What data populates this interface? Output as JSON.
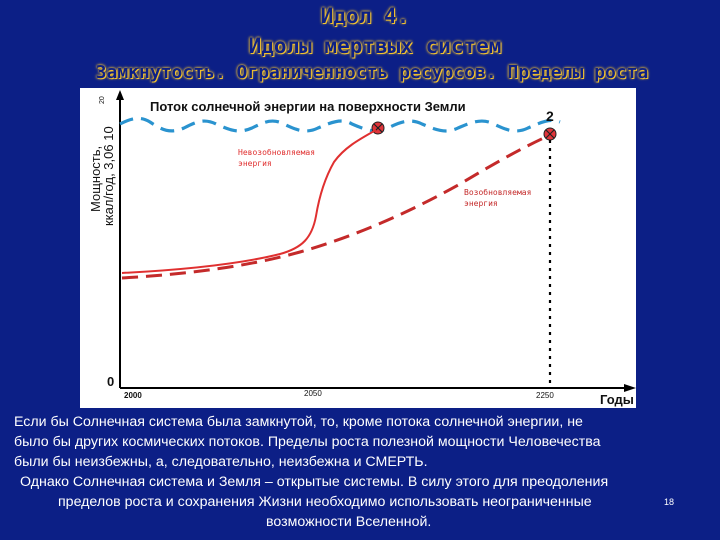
{
  "title": {
    "line1": "Идол 4.",
    "line2": "Идолы мертвых систем",
    "line3": "Замкнутость. Ограниченность ресурсов. Пределы роста"
  },
  "diagram": {
    "heading": "Поток солнечной энергии на поверхности Земли",
    "ylabel_line1": "Мощность,",
    "ylabel_line2": "ккал/год, 3,06 10",
    "ylabel_exp": "20",
    "y_zero": "0",
    "curve_marker": "2",
    "nonrenewable_label": [
      "Невозобновляемая",
      "энергия"
    ],
    "renewable_label": [
      "Возобновляемая",
      "энергия"
    ],
    "x_ticks": [
      "2000",
      "2050",
      "2250"
    ],
    "x_unit": "Годы",
    "colors": {
      "solar_flux": "#2a93cf",
      "nonrenewable": "#e03030",
      "renewable": "#c42a2a",
      "marker_fill": "#e0343a"
    }
  },
  "caption": {
    "line1": "Если  бы Солнечная система  была замкнутой, то, кроме потока солнечной энергии, не",
    "line2": "было бы других космических потоков. Пределы роста полезной мощности Человечества",
    "line3": "были бы  неизбежны, а, следовательно, неизбежна и СМЕРТЬ.",
    "line4": "Однако Солнечная система и Земля  – открытые системы. В силу этого для преодоления",
    "line5": "пределов роста и сохранения Жизни необходимо использовать неограниченные",
    "line6": "возможности Вселенной.",
    "page_number": "18"
  }
}
